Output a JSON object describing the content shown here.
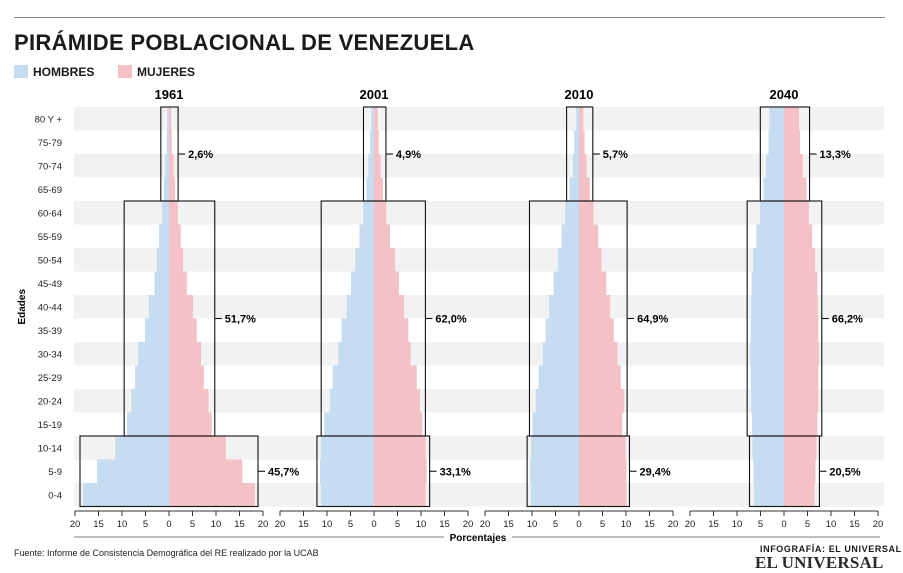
{
  "title": "PIRÁMIDE POBLACIONAL DE VENEZUELA",
  "legend": [
    {
      "label": "HOMBRES",
      "color": "#c5dcf1"
    },
    {
      "label": "MUJERES",
      "color": "#f3c1c6"
    }
  ],
  "source": "Fuente: Informe de Consistencia Demográfica del RE realizado por la UCAB",
  "credit": "INFOGRAFÍA: EL UNIVERSAL",
  "logo": "EL UNIVERSAL",
  "chart_data": {
    "type": "bar",
    "orientation": "horizontal-pyramid",
    "ylabel": "Edades",
    "xlabel": "Porcentajes",
    "xlim": [
      -20,
      20
    ],
    "xticks": [
      20,
      15,
      10,
      5,
      0,
      5,
      10,
      15,
      20
    ],
    "categories": [
      "80 Y +",
      "75-79",
      "70-74",
      "65-69",
      "60-64",
      "55-59",
      "50-54",
      "45-49",
      "40-44",
      "35-39",
      "30-34",
      "25-29",
      "20-24",
      "15-19",
      "10-14",
      "5-9",
      "0-4"
    ],
    "groups": [
      {
        "title": "1961",
        "hombres": [
          0.4,
          0.5,
          0.8,
          1.1,
          1.5,
          2.1,
          2.6,
          3.1,
          4.3,
          5.1,
          6.6,
          7.2,
          8.0,
          8.9,
          11.4,
          15.3,
          18.3
        ],
        "mujeres": [
          0.5,
          0.6,
          1.0,
          1.3,
          1.9,
          2.5,
          3.0,
          3.8,
          5.1,
          5.9,
          6.8,
          7.4,
          8.4,
          9.1,
          12.1,
          15.6,
          18.3
        ],
        "brackets": [
          {
            "label": "2,6%",
            "from": "80 Y +",
            "to": "65-69"
          },
          {
            "label": "51,7%",
            "from": "60-64",
            "to": "15-19"
          },
          {
            "label": "45,7%",
            "from": "10-14",
            "to": "0-4"
          }
        ]
      },
      {
        "title": "2001",
        "hombres": [
          0.6,
          0.8,
          1.2,
          1.6,
          2.3,
          3.1,
          4.0,
          4.9,
          5.8,
          6.9,
          7.6,
          8.8,
          9.4,
          10.6,
          11.3,
          11.5,
          11.3
        ],
        "mujeres": [
          0.8,
          1.0,
          1.4,
          1.9,
          2.6,
          3.4,
          4.5,
          5.3,
          6.4,
          7.3,
          7.8,
          9.1,
          9.8,
          10.3,
          11.0,
          11.2,
          11.0
        ],
        "brackets": [
          {
            "label": "4,9%",
            "from": "80 Y +",
            "to": "65-69"
          },
          {
            "label": "62,0%",
            "from": "60-64",
            "to": "15-19"
          },
          {
            "label": "33,1%",
            "from": "10-14",
            "to": "0-4"
          }
        ]
      },
      {
        "title": "2010",
        "hombres": [
          0.6,
          1.0,
          1.3,
          2.0,
          2.9,
          3.7,
          4.5,
          5.4,
          6.3,
          7.1,
          7.7,
          8.6,
          9.2,
          9.9,
          10.2,
          10.4,
          10.3
        ],
        "mujeres": [
          0.9,
          1.2,
          1.6,
          2.3,
          3.1,
          4.1,
          4.8,
          5.8,
          6.6,
          7.4,
          8.2,
          8.9,
          9.6,
          9.2,
          9.9,
          10.1,
          10.1
        ],
        "brackets": [
          {
            "label": "5,7%",
            "from": "80 Y +",
            "to": "65-69"
          },
          {
            "label": "64,9%",
            "from": "60-64",
            "to": "15-19"
          },
          {
            "label": "29,4%",
            "from": "10-14",
            "to": "0-4"
          }
        ]
      },
      {
        "title": "2040",
        "hombres": [
          3.1,
          3.3,
          3.8,
          4.4,
          5.1,
          5.9,
          6.6,
          6.9,
          7.0,
          7.1,
          7.2,
          7.1,
          7.0,
          6.8,
          6.7,
          6.5,
          6.4
        ],
        "mujeres": [
          3.2,
          3.4,
          4.0,
          4.8,
          5.3,
          6.0,
          6.6,
          7.1,
          7.2,
          7.3,
          7.4,
          7.3,
          7.3,
          7.1,
          6.9,
          6.7,
          6.5
        ],
        "brackets": [
          {
            "label": "13,3%",
            "from": "80 Y +",
            "to": "65-69"
          },
          {
            "label": "66,2%",
            "from": "60-64",
            "to": "15-19"
          },
          {
            "label": "20,5%",
            "from": "10-14",
            "to": "0-4"
          }
        ]
      }
    ],
    "grid": false,
    "legend_position": "top-left"
  }
}
